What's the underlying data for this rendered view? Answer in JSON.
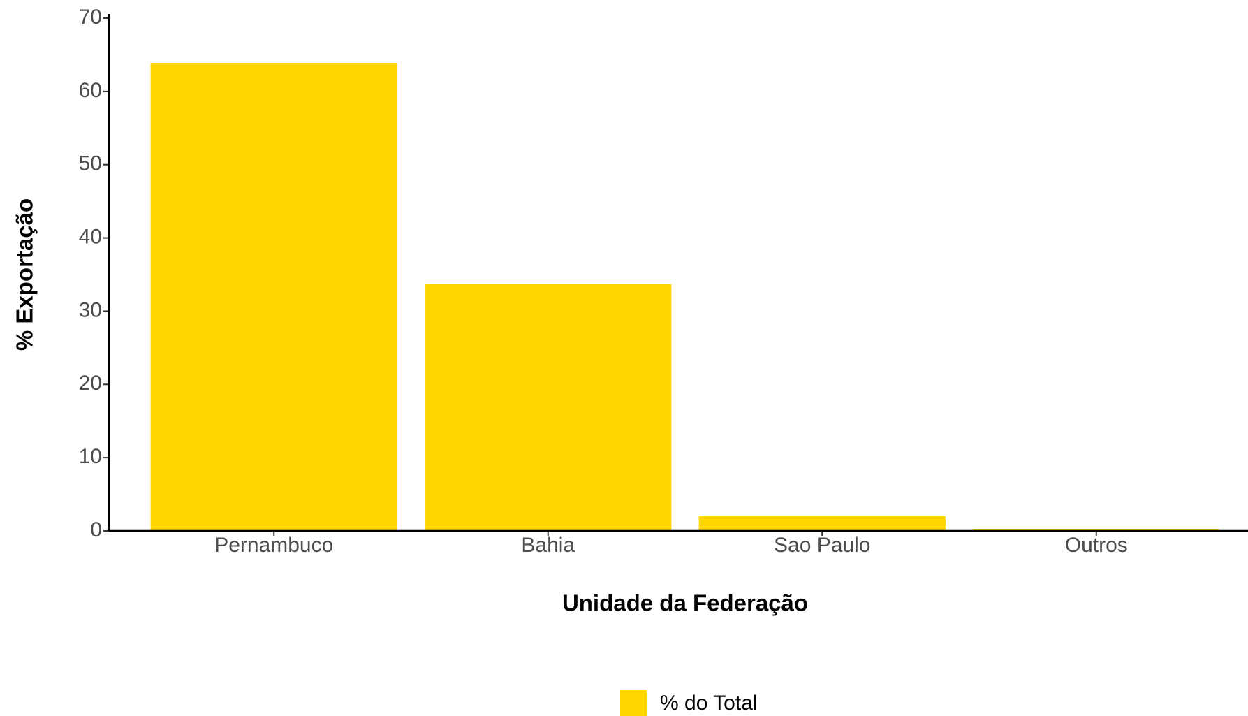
{
  "chart_data": {
    "type": "bar",
    "x_label": "Unidade da Federação",
    "y_label": "% Exportação",
    "categories": [
      "Pernambuco",
      "Bahia",
      "Sao Paulo",
      "Outros"
    ],
    "series": [
      {
        "name": "% do Total",
        "color": "#FFD700",
        "values": [
          63.9,
          33.7,
          2.0,
          0.2
        ]
      }
    ],
    "ylim": [
      0,
      70
    ],
    "yticks": [
      0,
      10,
      20,
      30,
      40,
      50,
      60,
      70
    ],
    "grid": false,
    "legend": "bottom"
  }
}
